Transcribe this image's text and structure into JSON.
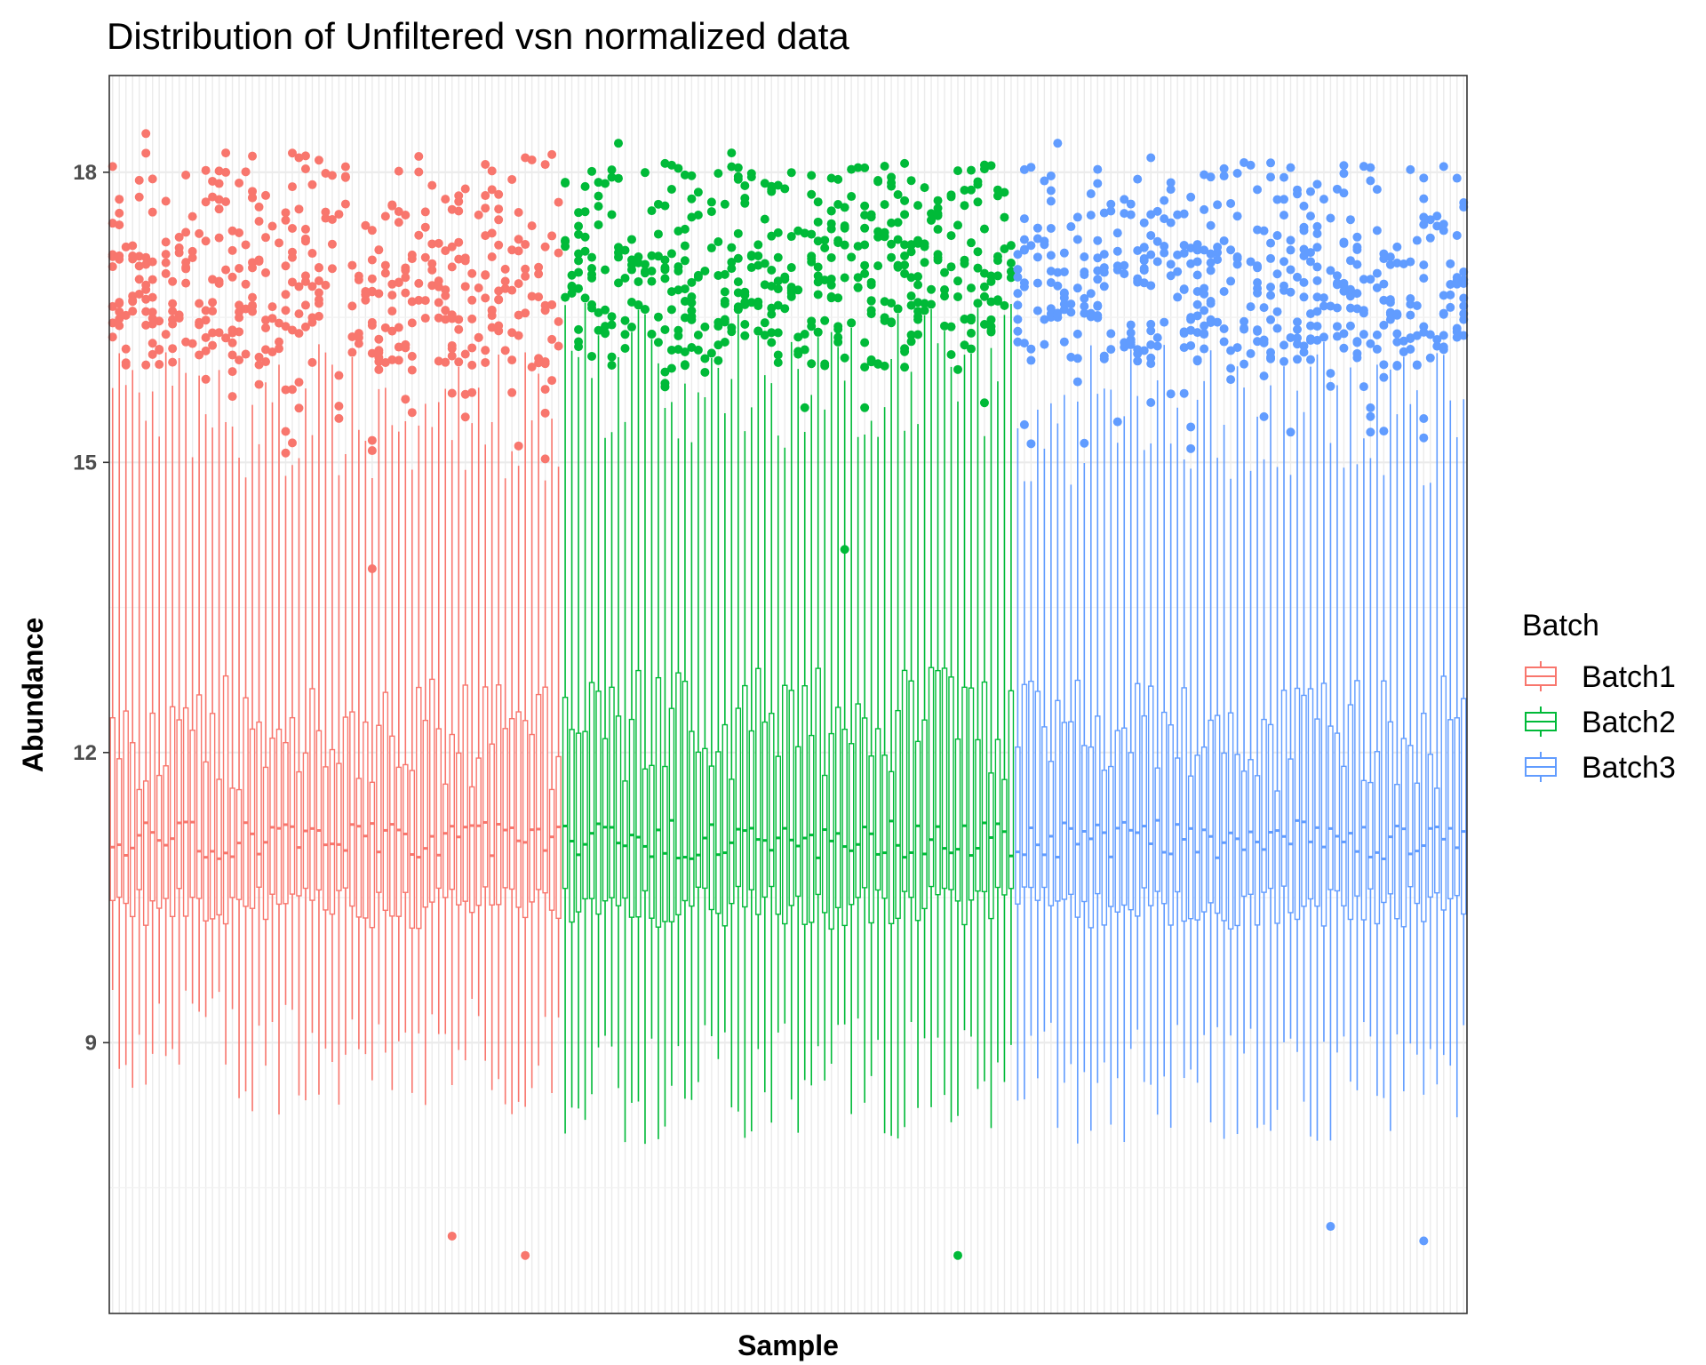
{
  "chart_data": {
    "type": "box",
    "title": "Distribution of Unfiltered vsn normalized data",
    "xlabel": "Sample",
    "ylabel": "Abundance",
    "ylim": [
      6.2,
      19.0
    ],
    "yticks": [
      9,
      12,
      15,
      18
    ],
    "grid": true,
    "x_tick_labels_shown": false,
    "legend": {
      "title": "Batch",
      "position": "right",
      "entries": [
        {
          "name": "Batch1",
          "color": "#F8766D"
        },
        {
          "name": "Batch2",
          "color": "#00BA38"
        },
        {
          "name": "Batch3",
          "color": "#619CFF"
        }
      ]
    },
    "samples_per_batch": 68,
    "series": [
      {
        "name": "Batch1",
        "color": "#F8766D",
        "typical_box": {
          "lower_whisker": 8.9,
          "q1": 10.4,
          "median": 11.1,
          "q3": 12.2,
          "upper_whisker": 15.5
        },
        "outlier_range_upper": [
          14.0,
          18.4
        ],
        "extreme_points": [
          18.4,
          18.2,
          18.15,
          13.9,
          7.0,
          6.8
        ]
      },
      {
        "name": "Batch2",
        "color": "#00BA38",
        "typical_box": {
          "lower_whisker": 8.6,
          "q1": 10.4,
          "median": 11.1,
          "q3": 12.3,
          "upper_whisker": 15.9
        },
        "outlier_range_upper": [
          14.1,
          18.3
        ],
        "extreme_points": [
          18.3,
          18.2,
          14.1,
          6.8
        ]
      },
      {
        "name": "Batch3",
        "color": "#619CFF",
        "typical_box": {
          "lower_whisker": 8.6,
          "q1": 10.4,
          "median": 11.1,
          "q3": 12.2,
          "upper_whisker": 15.5
        },
        "outlier_range_upper": [
          14.1,
          18.3
        ],
        "extreme_points": [
          18.3,
          18.15,
          18.1,
          7.1,
          6.95
        ]
      }
    ]
  }
}
